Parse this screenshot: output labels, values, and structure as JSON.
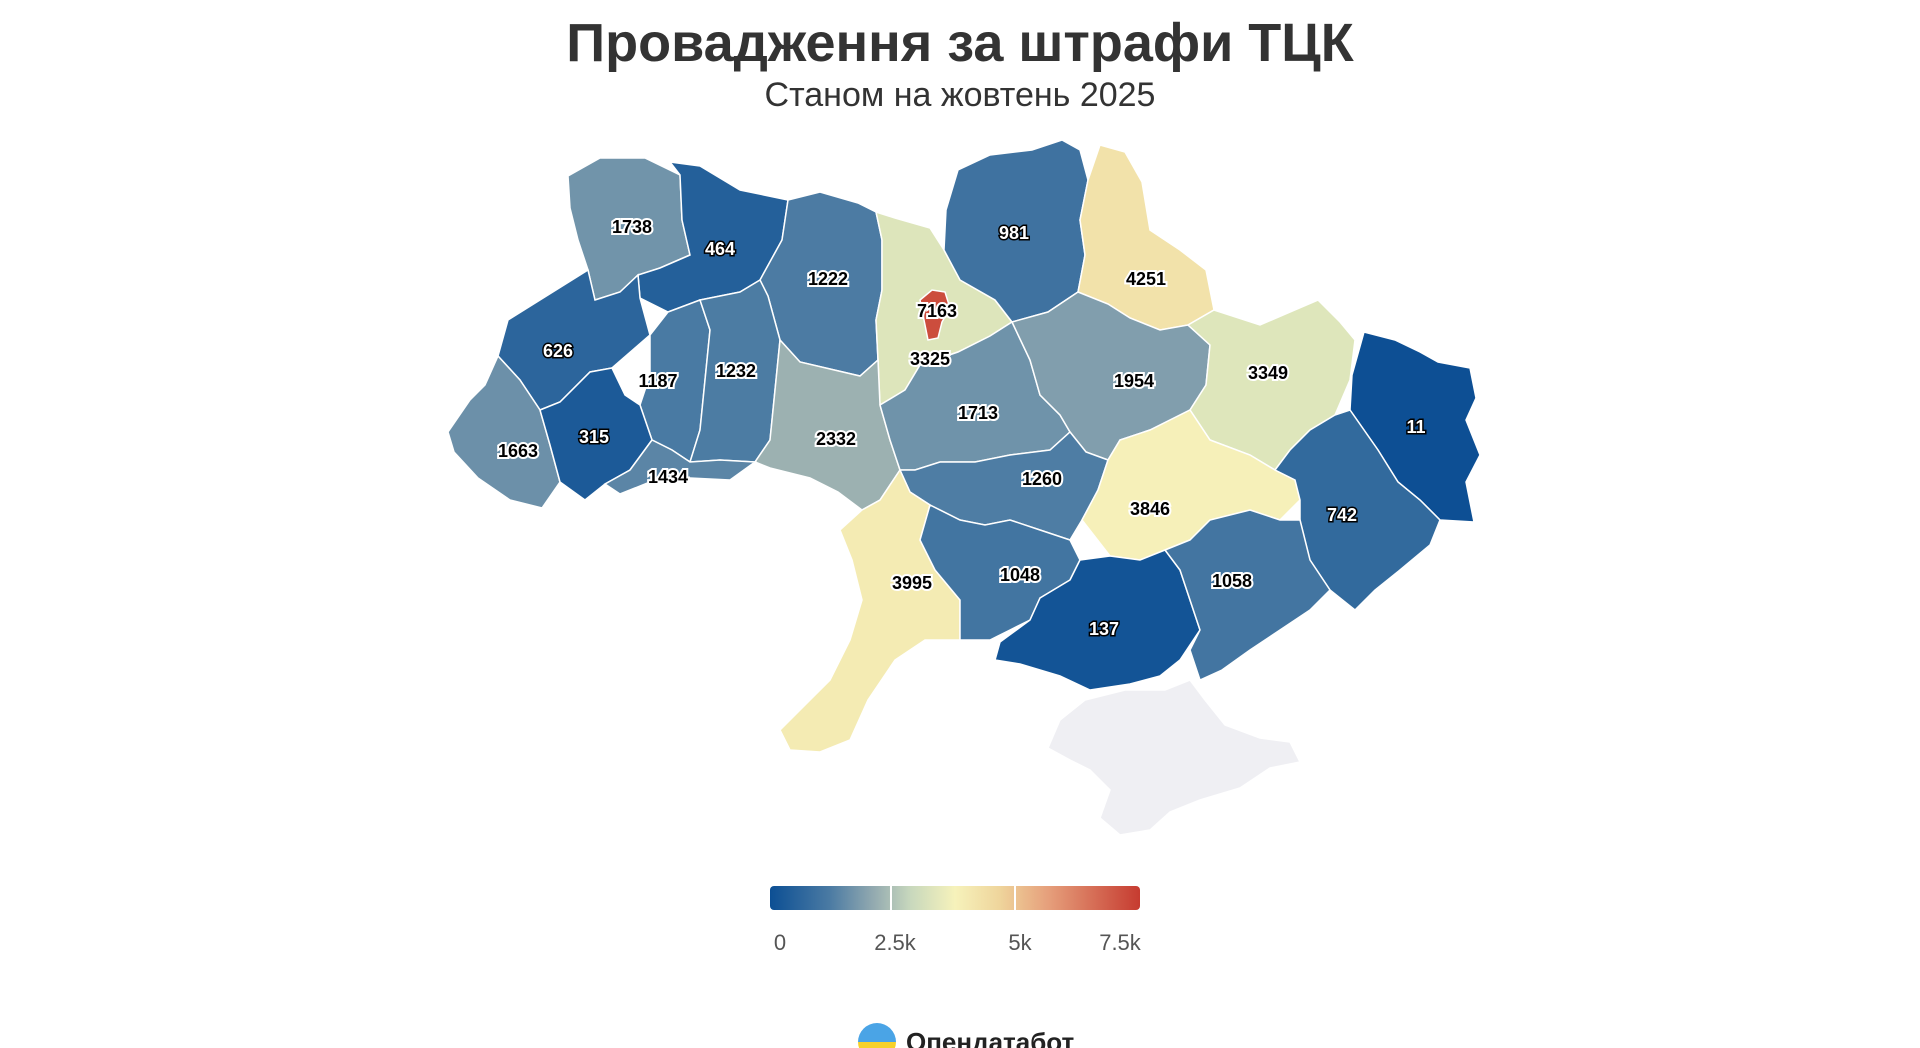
{
  "title": "Провадження за штрафи ТЦК",
  "subtitle": "Станом на жовтень 2025",
  "legend": {
    "labels": [
      "0",
      "2.5k",
      "5k",
      "7.5k"
    ],
    "min": 0,
    "max": 7500,
    "colors": [
      "#0c4f94",
      "#93aab0",
      "#f6f2bb",
      "#c63b30"
    ]
  },
  "brand": {
    "name": "Опендатабот",
    "logo_icon": "sun-wave-logo-icon"
  },
  "regions": [
    {
      "id": "volyn",
      "value": 1738
    },
    {
      "id": "rivne",
      "value": 464
    },
    {
      "id": "zhytomyr",
      "value": 1222
    },
    {
      "id": "kyiv-oblast",
      "value": 3325
    },
    {
      "id": "kyiv-city",
      "value": 7163
    },
    {
      "id": "chernihiv",
      "value": 981
    },
    {
      "id": "sumy",
      "value": 4251
    },
    {
      "id": "lviv",
      "value": 626
    },
    {
      "id": "ternopil",
      "value": 1187
    },
    {
      "id": "khmelnytskyi",
      "value": 1232
    },
    {
      "id": "vinnytsia",
      "value": 2332
    },
    {
      "id": "cherkasy",
      "value": 1713
    },
    {
      "id": "poltava",
      "value": 1954
    },
    {
      "id": "kharkiv",
      "value": 3349
    },
    {
      "id": "luhansk",
      "value": 11
    },
    {
      "id": "zakarpattia",
      "value": 1663
    },
    {
      "id": "ivano-frankivsk",
      "value": 315
    },
    {
      "id": "chernivtsi",
      "value": 1434
    },
    {
      "id": "kirovohrad",
      "value": 1260
    },
    {
      "id": "dnipropetrovsk",
      "value": 3846
    },
    {
      "id": "donetsk",
      "value": 742
    },
    {
      "id": "odesa",
      "value": 3995
    },
    {
      "id": "mykolaiv",
      "value": 1048
    },
    {
      "id": "kherson",
      "value": 137
    },
    {
      "id": "zaporizhzhia",
      "value": 1058
    },
    {
      "id": "crimea",
      "value": null
    }
  ]
}
